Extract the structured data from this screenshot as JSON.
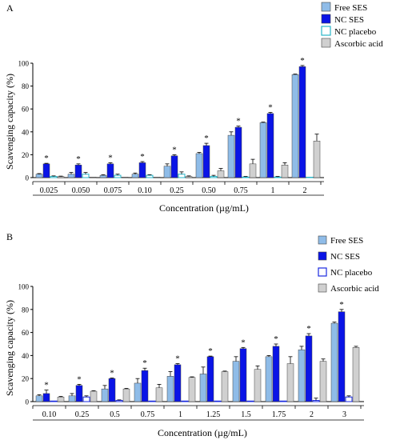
{
  "chart_data": [
    {
      "type": "bar",
      "panel_label": "A",
      "ylabel": "Scavenging capacity (%)",
      "xlabel": "Concentration (µg/mL)",
      "ylim": [
        0,
        100
      ],
      "yticks": [
        0,
        20,
        40,
        60,
        80,
        100
      ],
      "categories": [
        "0.025",
        "0.050",
        "0.075",
        "0.10",
        "0.25",
        "0.50",
        "0.75",
        "1",
        "2"
      ],
      "legend_position": "top-right",
      "series": [
        {
          "name": "Free SES",
          "values": [
            3,
            3,
            2,
            3,
            10,
            21,
            37,
            48,
            90
          ],
          "errors": [
            0.5,
            1.5,
            0.5,
            1,
            2,
            1,
            3,
            0.5,
            0.5
          ]
        },
        {
          "name": "NC SES",
          "values": [
            12,
            11,
            12,
            13,
            19,
            28,
            44,
            56,
            97
          ],
          "errors": [
            0.5,
            1,
            1,
            1,
            1,
            2,
            1,
            1,
            1
          ]
        },
        {
          "name": "NC placebo",
          "values": [
            1,
            3,
            2,
            2,
            3,
            1,
            0.5,
            0.5,
            0
          ],
          "errors": [
            0.5,
            1.5,
            1,
            0.5,
            2,
            1,
            0.5,
            0.5,
            0
          ]
        },
        {
          "name": "Ascorbic acid",
          "values": [
            1,
            0.5,
            0.5,
            0.5,
            1,
            6,
            12,
            11,
            32
          ],
          "errors": [
            0.3,
            0.2,
            0.2,
            0.2,
            0.5,
            2,
            4,
            2,
            6
          ]
        }
      ],
      "significance_marker": "*",
      "significance_series": "NC SES"
    },
    {
      "type": "bar",
      "panel_label": "B",
      "ylabel": "Scavenging capacity (%)",
      "xlabel": "Concentration (µg/mL)",
      "ylim": [
        0,
        100
      ],
      "yticks": [
        0,
        20,
        40,
        60,
        80,
        100
      ],
      "categories": [
        "0.10",
        "0.25",
        "0.5",
        "0.75",
        "1",
        "1.25",
        "1.5",
        "1.75",
        "2",
        "3"
      ],
      "legend_position": "top-right",
      "series": [
        {
          "name": "Free SES",
          "values": [
            5,
            5,
            11,
            16,
            22,
            24,
            35,
            39,
            45,
            68
          ],
          "errors": [
            1,
            2,
            3,
            4,
            4,
            6,
            4,
            1,
            3,
            1
          ]
        },
        {
          "name": "NC SES",
          "values": [
            7,
            14,
            20,
            27,
            32,
            39,
            46,
            48,
            57,
            78
          ],
          "errors": [
            3,
            1,
            0.5,
            2,
            1,
            0.5,
            1,
            2,
            2,
            2
          ]
        },
        {
          "name": "NC placebo",
          "values": [
            0.5,
            4,
            1,
            0.5,
            0.5,
            0.5,
            0.5,
            0.5,
            1,
            4
          ],
          "errors": [
            0.2,
            1,
            0.5,
            0.2,
            0.2,
            0.2,
            0.2,
            0.2,
            2,
            1
          ]
        },
        {
          "name": "Ascorbic acid",
          "values": [
            4,
            9,
            11,
            12,
            21,
            26,
            28,
            33,
            35,
            47
          ],
          "errors": [
            0.5,
            0.5,
            0.5,
            3,
            0.5,
            0.5,
            3,
            6,
            2,
            1
          ]
        }
      ],
      "significance_marker": "*",
      "significance_series": "NC SES"
    }
  ],
  "colors": {
    "Free SES": "#8fbce8",
    "NC SES": "#0a14e6",
    "NC placebo": "#ffffff",
    "Ascorbic acid": "#d0d0d0",
    "placebo_stroke_A": "#29b6c8",
    "placebo_stroke_B": "#1a2ae0"
  }
}
